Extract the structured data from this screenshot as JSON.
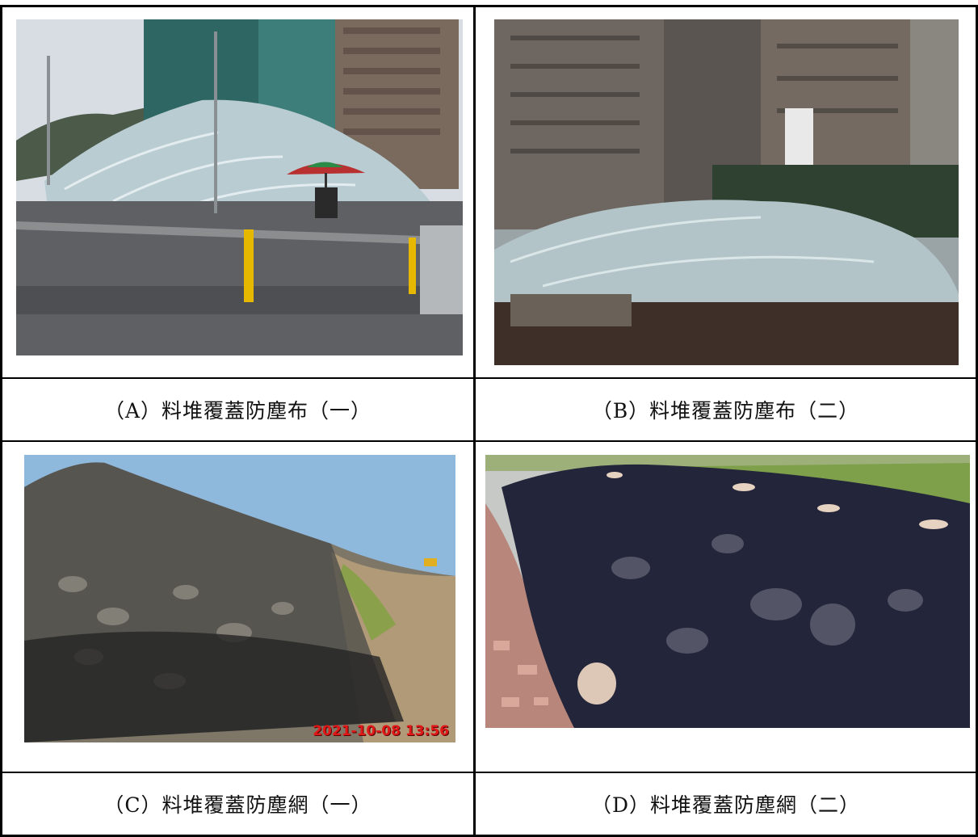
{
  "figures": [
    {
      "id": "A",
      "caption": "（A）料堆覆蓋防塵布（一）",
      "icon": "dust-cloth-stockpile-photo"
    },
    {
      "id": "B",
      "caption": "（B）料堆覆蓋防塵布（二）",
      "icon": "dust-cloth-stockpile-photo"
    },
    {
      "id": "C",
      "caption": "（C）料堆覆蓋防塵網（一）",
      "icon": "dust-net-stockpile-photo",
      "timestamp": "2021-10-08 13:56"
    },
    {
      "id": "D",
      "caption": "（D）料堆覆蓋防塵網（二）",
      "icon": "dust-net-stockpile-photo"
    }
  ],
  "colors": {
    "border": "#000000",
    "timestamp": "#e01818"
  }
}
